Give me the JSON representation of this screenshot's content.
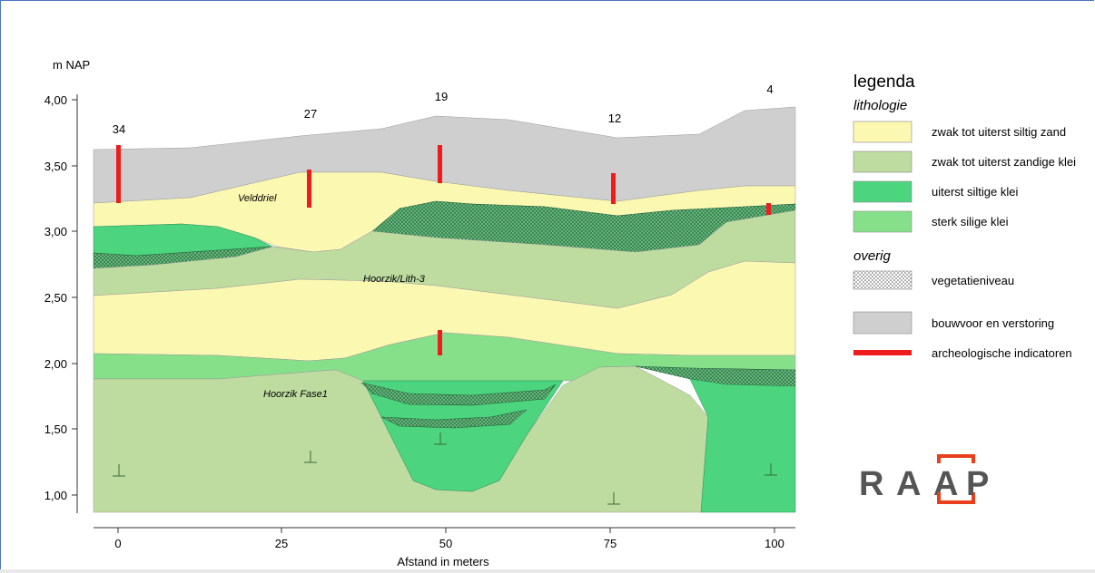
{
  "y_axis": {
    "label": "m NAP",
    "ticks": [
      "4,00",
      "3,50",
      "3,00",
      "2,50",
      "2,00",
      "1,50",
      "1,00"
    ]
  },
  "x_axis": {
    "label": "Afstand in meters",
    "ticks": [
      "0",
      "25",
      "50",
      "75",
      "100"
    ]
  },
  "boreholes": [
    "34",
    "27",
    "19",
    "12",
    "4"
  ],
  "units": [
    "Velddriel",
    "Hoorzik/Lith-3",
    "Hoorzik Fase1"
  ],
  "legend": {
    "title": "legenda",
    "lithologie_title": "lithologie",
    "lithologie": [
      {
        "label": "zwak tot uiterst siltig zand",
        "color": "#fbf8b2"
      },
      {
        "label": "zwak tot uiterst zandige klei",
        "color": "#bedca0"
      },
      {
        "label": "uiterst siltige klei",
        "color": "#4cd47e"
      },
      {
        "label": "sterk silige klei",
        "color": "#86e08a"
      }
    ],
    "overig_title": "overig",
    "overig": [
      {
        "label": "vegetatieniveau"
      },
      {
        "label": "bouwvoor en verstoring",
        "color": "#cfcfcf"
      },
      {
        "label": "archeologische indicatoren",
        "color": "#ee1c1c"
      }
    ]
  },
  "logo": {
    "letters": [
      "R",
      "A",
      "A",
      "P"
    ],
    "accent": "#e8401c"
  }
}
